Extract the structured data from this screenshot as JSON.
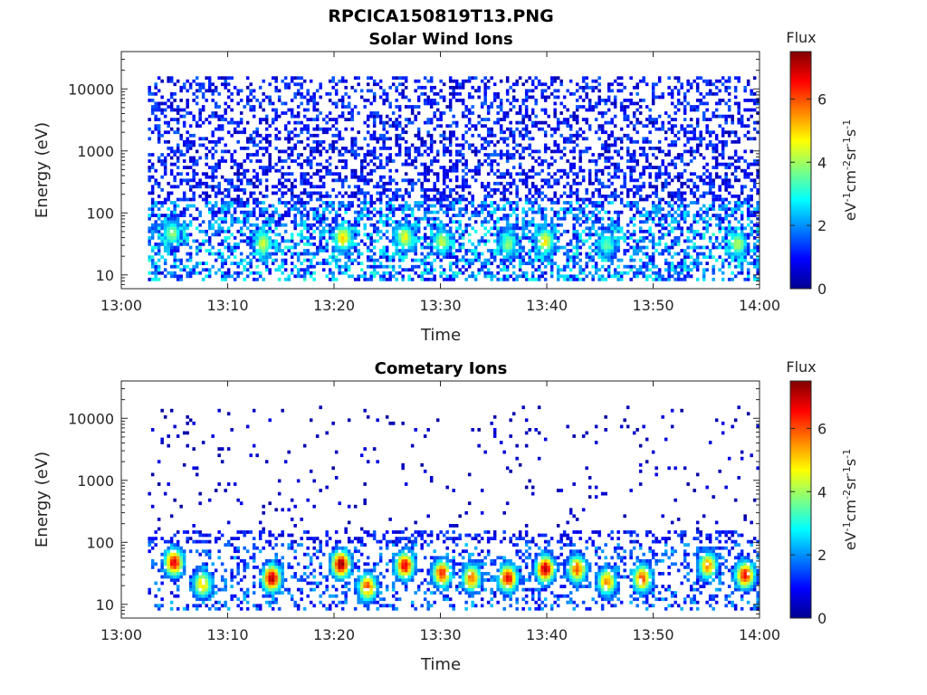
{
  "figure": {
    "title": "RPCICA150819T13.PNG"
  },
  "colorbar_label": "Flux",
  "colorbar_unit": "eV-1cm-2sr-1s-1",
  "chart_data": [
    {
      "type": "heatmap",
      "title": "Solar Wind Ions",
      "xlabel": "Time",
      "ylabel": "Energy (eV)",
      "x_ticks": [
        "13:00",
        "13:10",
        "13:20",
        "13:30",
        "13:40",
        "13:50",
        "14:00"
      ],
      "x_range_minutes": [
        0,
        60
      ],
      "y_ticks": [
        "10",
        "100",
        "1000",
        "10000"
      ],
      "yscale": "log",
      "y_range_eV": [
        6,
        40000
      ],
      "data_start_minute": 2.5,
      "colorbar": {
        "label": "Flux",
        "ticks": [
          "0",
          "2",
          "4",
          "6"
        ],
        "range": [
          0,
          7.5
        ],
        "colormap": "jet"
      },
      "hotspots": [
        {
          "t": 4.6,
          "e": 45,
          "v": 3.8
        },
        {
          "t": 13.2,
          "e": 30,
          "v": 4.2
        },
        {
          "t": 20.7,
          "e": 38,
          "v": 4.8
        },
        {
          "t": 26.5,
          "e": 38,
          "v": 4.4
        },
        {
          "t": 30.0,
          "e": 33,
          "v": 4.0
        },
        {
          "t": 36.2,
          "e": 30,
          "v": 3.6
        },
        {
          "t": 39.7,
          "e": 33,
          "v": 4.6
        },
        {
          "t": 45.5,
          "e": 30,
          "v": 3.4
        },
        {
          "t": 57.8,
          "e": 30,
          "v": 4.0
        }
      ]
    },
    {
      "type": "heatmap",
      "title": "Cometary Ions",
      "xlabel": "Time",
      "ylabel": "Energy (eV)",
      "x_ticks": [
        "13:00",
        "13:10",
        "13:20",
        "13:30",
        "13:40",
        "13:50",
        "14:00"
      ],
      "x_range_minutes": [
        0,
        60
      ],
      "y_ticks": [
        "10",
        "100",
        "1000",
        "10000"
      ],
      "yscale": "log",
      "y_range_eV": [
        6,
        40000
      ],
      "data_start_minute": 2.5,
      "colorbar": {
        "label": "Flux",
        "ticks": [
          "0",
          "2",
          "4",
          "6"
        ],
        "range": [
          0,
          7.5
        ],
        "colormap": "jet"
      },
      "hotspots": [
        {
          "t": 4.8,
          "e": 45,
          "v": 6.6
        },
        {
          "t": 7.5,
          "e": 20,
          "v": 5.0
        },
        {
          "t": 14.0,
          "e": 25,
          "v": 6.9
        },
        {
          "t": 20.5,
          "e": 42,
          "v": 7.2
        },
        {
          "t": 23.0,
          "e": 18,
          "v": 5.8
        },
        {
          "t": 26.5,
          "e": 40,
          "v": 6.6
        },
        {
          "t": 30.0,
          "e": 30,
          "v": 6.2
        },
        {
          "t": 32.8,
          "e": 25,
          "v": 5.6
        },
        {
          "t": 36.2,
          "e": 25,
          "v": 6.5
        },
        {
          "t": 39.7,
          "e": 35,
          "v": 6.9
        },
        {
          "t": 42.7,
          "e": 35,
          "v": 5.8
        },
        {
          "t": 45.5,
          "e": 22,
          "v": 5.4
        },
        {
          "t": 48.8,
          "e": 25,
          "v": 5.8
        },
        {
          "t": 55.0,
          "e": 40,
          "v": 5.4
        },
        {
          "t": 58.5,
          "e": 28,
          "v": 6.4
        }
      ]
    }
  ]
}
